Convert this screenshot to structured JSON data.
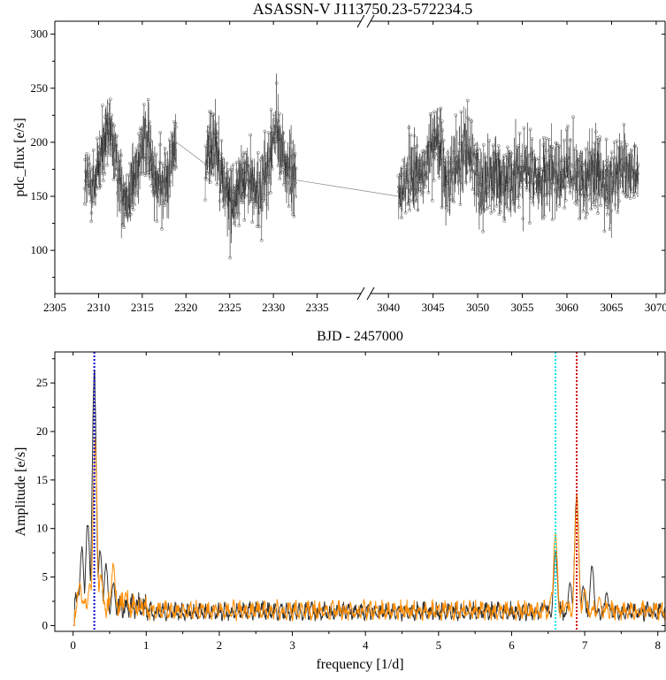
{
  "chart_data": [
    {
      "type": "scatter",
      "title": "ASASSN-V J113750.23-572234.5",
      "xlabel": "BJD - 2457000",
      "ylabel": "pdc_flux [e/s]",
      "x_axis_break": true,
      "xlim_segments": [
        [
          2305,
          2340
        ],
        [
          3038,
          3071
        ]
      ],
      "ylim": [
        60,
        312
      ],
      "xticks_left": [
        2305,
        2310,
        2315,
        2320,
        2325,
        2330,
        2335
      ],
      "xticks_right": [
        3040,
        3045,
        3050,
        3055,
        3060,
        3065,
        3070
      ],
      "yticks": [
        100,
        150,
        200,
        250,
        300
      ],
      "marker": "open-circle-connected",
      "color": "#222222",
      "segments": [
        {
          "x_range": [
            2308.4,
            2318.9
          ],
          "trend": [
            [
              2308.4,
              165
            ],
            [
              2309.5,
              160
            ],
            [
              2310.5,
              195
            ],
            [
              2311.3,
              210
            ],
            [
              2312.5,
              160
            ],
            [
              2313.5,
              150
            ],
            [
              2314.5,
              180
            ],
            [
              2315.3,
              205
            ],
            [
              2316.5,
              170
            ],
            [
              2317.5,
              155
            ],
            [
              2318.5,
              190
            ],
            [
              2318.9,
              200
            ]
          ]
        },
        {
          "x_range": [
            2322.2,
            2332.6
          ],
          "trend": [
            [
              2322.2,
              180
            ],
            [
              2323.3,
              205
            ],
            [
              2324.3,
              160
            ],
            [
              2325.3,
              140
            ],
            [
              2326.5,
              170
            ],
            [
              2327.5,
              165
            ],
            [
              2328.3,
              150
            ],
            [
              2329.4,
              175
            ],
            [
              2330.3,
              215
            ],
            [
              2331.5,
              175
            ],
            [
              2332.6,
              165
            ]
          ]
        },
        {
          "x_range": [
            3041.1,
            3068.0
          ],
          "trend": [
            [
              3041.1,
              150
            ],
            [
              3042.5,
              175
            ],
            [
              3044.0,
              170
            ],
            [
              3045.3,
              210
            ],
            [
              3046.5,
              160
            ],
            [
              3047.5,
              180
            ],
            [
              3049.0,
              195
            ],
            [
              3050.5,
              160
            ],
            [
              3052.0,
              175
            ],
            [
              3053.5,
              160
            ],
            [
              3055.0,
              175
            ],
            [
              3057.0,
              165
            ],
            [
              3058.5,
              170
            ],
            [
              3060.0,
              175
            ],
            [
              3061.5,
              165
            ],
            [
              3063.0,
              175
            ],
            [
              3064.5,
              160
            ],
            [
              3066.0,
              170
            ],
            [
              3068.0,
              175
            ]
          ]
        }
      ],
      "gap_connectors": [
        [
          [
            2318.9,
            200
          ],
          [
            2322.2,
            180
          ]
        ],
        [
          [
            2332.6,
            165
          ],
          [
            3041.1,
            150
          ]
        ]
      ]
    },
    {
      "type": "line",
      "title": "",
      "xlabel": "frequency [1/d]",
      "ylabel": "Amplitude [e/s]",
      "xlim": [
        -0.25,
        8.1
      ],
      "ylim": [
        -0.6,
        28.2
      ],
      "xticks": [
        0,
        1,
        2,
        3,
        4,
        5,
        6,
        7,
        8
      ],
      "yticks": [
        0,
        5,
        10,
        15,
        20,
        25
      ],
      "vlines": [
        {
          "x": 0.29,
          "color": "#0000cc",
          "style": "dotted"
        },
        {
          "x": 6.6,
          "color": "#00e5ee",
          "style": "dotted"
        },
        {
          "x": 6.89,
          "color": "#cc0000",
          "style": "dotted"
        }
      ],
      "series": [
        {
          "color": "#333333",
          "peaks": [
            [
              0.07,
              3.5
            ],
            [
              0.12,
              8.2
            ],
            [
              0.2,
              11
            ],
            [
              0.29,
              27.1
            ],
            [
              0.37,
              8
            ],
            [
              0.45,
              6.5
            ],
            [
              0.55,
              4.5
            ],
            [
              6.45,
              2.2
            ],
            [
              6.6,
              8.0
            ],
            [
              6.8,
              4.5
            ],
            [
              6.89,
              14.2
            ],
            [
              6.98,
              4.2
            ],
            [
              7.1,
              6.5
            ],
            [
              7.3,
              3.5
            ]
          ],
          "noise_base": 1.3
        },
        {
          "color": "#ff8c00",
          "peaks": [
            [
              0.09,
              4.5
            ],
            [
              0.15,
              2.5
            ],
            [
              0.23,
              4.5
            ],
            [
              0.3,
              19.6
            ],
            [
              0.38,
              5.5
            ],
            [
              0.55,
              6.6
            ],
            [
              0.72,
              3.5
            ],
            [
              6.55,
              3.5
            ],
            [
              6.6,
              9.8
            ],
            [
              6.75,
              2.5
            ],
            [
              6.89,
              13.8
            ],
            [
              7.0,
              3.8
            ],
            [
              7.2,
              3.0
            ]
          ],
          "noise_base": 1.4
        }
      ]
    }
  ]
}
